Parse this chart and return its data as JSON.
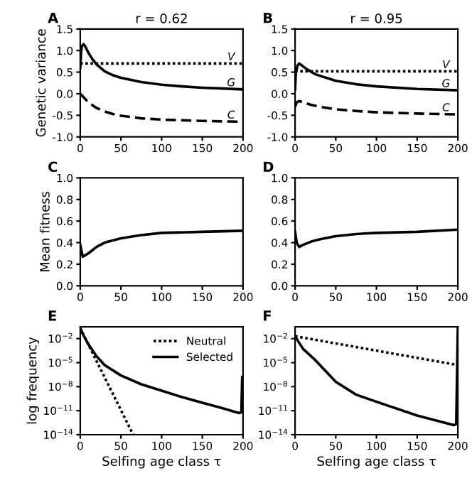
{
  "chart_data": [
    {
      "type": "line",
      "title": "r = 0.62",
      "ylabel": "Genetic variance",
      "annotations": [
        "A"
      ],
      "xlim": [
        0,
        200
      ],
      "xticks": [
        0,
        50,
        100,
        150,
        200
      ],
      "ylim": [
        -1.0,
        1.5
      ],
      "yticks": [
        {
          "value": -1.0,
          "label": "-1.0"
        },
        {
          "value": -0.5,
          "label": "-0.5"
        },
        {
          "value": 0.0,
          "label": "0.0"
        },
        {
          "value": 0.5,
          "label": "0.5"
        },
        {
          "value": 1.0,
          "label": "1.0"
        },
        {
          "value": 1.5,
          "label": "1.5"
        }
      ],
      "series": [
        {
          "name": "V",
          "color": "#000000",
          "line_style": "dotted",
          "x": [
            0,
            200
          ],
          "values": [
            0.7,
            0.7
          ]
        },
        {
          "name": "G",
          "color": "#000000",
          "line_style": "solid",
          "x": [
            0,
            1,
            2,
            4,
            6,
            10,
            15,
            20,
            30,
            40,
            50,
            75,
            100,
            125,
            150,
            175,
            200
          ],
          "values": [
            0.6,
            0.95,
            1.1,
            1.15,
            1.1,
            0.95,
            0.8,
            0.68,
            0.52,
            0.43,
            0.37,
            0.27,
            0.21,
            0.17,
            0.14,
            0.12,
            0.1
          ]
        },
        {
          "name": "C",
          "color": "#000000",
          "line_style": "dashed",
          "x": [
            0,
            5,
            10,
            20,
            30,
            40,
            50,
            75,
            100,
            150,
            200
          ],
          "values": [
            0,
            -0.1,
            -0.2,
            -0.33,
            -0.41,
            -0.47,
            -0.51,
            -0.57,
            -0.6,
            -0.63,
            -0.65
          ]
        }
      ]
    },
    {
      "type": "line",
      "title": "r = 0.95",
      "annotations": [
        "B"
      ],
      "xlim": [
        0,
        200
      ],
      "xticks": [
        0,
        50,
        100,
        150,
        200
      ],
      "ylim": [
        -1.0,
        1.5
      ],
      "yticks": [
        {
          "value": -1.0,
          "label": "-1.0"
        },
        {
          "value": -0.5,
          "label": "-0.5"
        },
        {
          "value": 0.0,
          "label": "0.0"
        },
        {
          "value": 0.5,
          "label": "0.5"
        },
        {
          "value": 1.0,
          "label": "1.0"
        },
        {
          "value": 1.5,
          "label": "1.5"
        }
      ],
      "series": [
        {
          "name": "V",
          "color": "#000000",
          "line_style": "dotted",
          "x": [
            0,
            200
          ],
          "values": [
            0.52,
            0.52
          ]
        },
        {
          "name": "G",
          "color": "#000000",
          "line_style": "solid",
          "x": [
            0,
            1,
            3,
            5,
            8,
            15,
            25,
            50,
            75,
            100,
            150,
            200
          ],
          "values": [
            0.1,
            0.5,
            0.65,
            0.7,
            0.66,
            0.56,
            0.45,
            0.3,
            0.22,
            0.17,
            0.11,
            0.08
          ]
        },
        {
          "name": "C",
          "color": "#000000",
          "line_style": "dashed",
          "x": [
            0,
            2,
            5,
            10,
            20,
            30,
            50,
            75,
            100,
            150,
            200
          ],
          "values": [
            -0.3,
            -0.2,
            -0.17,
            -0.2,
            -0.26,
            -0.3,
            -0.36,
            -0.4,
            -0.43,
            -0.46,
            -0.48
          ]
        }
      ]
    },
    {
      "type": "line",
      "ylabel": "Mean fitness",
      "annotations": [
        "C"
      ],
      "xlim": [
        0,
        200
      ],
      "xticks": [
        0,
        50,
        100,
        150,
        200
      ],
      "ylim": [
        0.0,
        1.0
      ],
      "yticks": [
        {
          "value": 0.0,
          "label": "0.0"
        },
        {
          "value": 0.2,
          "label": "0.2"
        },
        {
          "value": 0.4,
          "label": "0.4"
        },
        {
          "value": 0.6,
          "label": "0.6"
        },
        {
          "value": 0.8,
          "label": "0.8"
        },
        {
          "value": 1.0,
          "label": "1.0"
        }
      ],
      "series": [
        {
          "color": "#000000",
          "line_style": "solid",
          "x": [
            0,
            3,
            10,
            20,
            30,
            50,
            75,
            100,
            150,
            200
          ],
          "values": [
            0.38,
            0.27,
            0.3,
            0.36,
            0.4,
            0.44,
            0.47,
            0.49,
            0.5,
            0.51
          ]
        }
      ]
    },
    {
      "type": "line",
      "annotations": [
        "D"
      ],
      "xlim": [
        0,
        200
      ],
      "xticks": [
        0,
        50,
        100,
        150,
        200
      ],
      "ylim": [
        0.0,
        1.0
      ],
      "yticks": [
        {
          "value": 0.0,
          "label": "0.0"
        },
        {
          "value": 0.2,
          "label": "0.2"
        },
        {
          "value": 0.4,
          "label": "0.4"
        },
        {
          "value": 0.6,
          "label": "0.6"
        },
        {
          "value": 0.8,
          "label": "0.8"
        },
        {
          "value": 1.0,
          "label": "1.0"
        }
      ],
      "series": [
        {
          "color": "#000000",
          "line_style": "solid",
          "x": [
            0,
            2,
            5,
            10,
            20,
            30,
            50,
            75,
            100,
            150,
            200
          ],
          "values": [
            0.5,
            0.4,
            0.36,
            0.38,
            0.41,
            0.43,
            0.46,
            0.48,
            0.49,
            0.5,
            0.52
          ]
        }
      ]
    },
    {
      "type": "line",
      "log": "y",
      "xlabel": "Selfing age class τ",
      "ylabel": "log frequency",
      "annotations": [
        "E"
      ],
      "legend": "top right",
      "xlim": [
        0,
        200
      ],
      "xticks": [
        0,
        50,
        100,
        150,
        200
      ],
      "ylim": [
        1e-14,
        0.3
      ],
      "yticks": [
        {
          "value": 1e-14,
          "label": "10$^{−14}$"
        },
        {
          "value": 1e-11,
          "label": "10$^{−11}$"
        },
        {
          "value": 1e-08,
          "label": "10$^{−8}$"
        },
        {
          "value": 1e-05,
          "label": "10$^{−5}$"
        },
        {
          "value": 0.01,
          "label": "10$^{−2}$"
        }
      ],
      "series": [
        {
          "name": "Neutral",
          "color": "#000000",
          "line_style": "dotted",
          "x": [
            0,
            65
          ],
          "values": [
            0.2,
            1e-14
          ]
        },
        {
          "name": "Selected",
          "color": "#000000",
          "line_style": "solid",
          "x": [
            0,
            5,
            10,
            20,
            30,
            50,
            75,
            100,
            125,
            150,
            175,
            195,
            198,
            199
          ],
          "values": [
            0.2,
            0.016,
            0.002,
            6.3e-05,
            5e-06,
            2.5e-07,
            2e-08,
            3.2e-09,
            5e-10,
            1e-10,
            2e-11,
            5e-12,
            6.3e-12,
            1.6e-07
          ]
        }
      ]
    },
    {
      "type": "line",
      "log": "y",
      "xlabel": "Selfing age class τ",
      "annotations": [
        "F"
      ],
      "xlim": [
        0,
        200
      ],
      "xticks": [
        0,
        50,
        100,
        150,
        200
      ],
      "ylim": [
        1e-14,
        0.3
      ],
      "yticks": [
        {
          "value": 1e-14,
          "label": "10$^{−14}$"
        },
        {
          "value": 1e-11,
          "label": "10$^{−11}$"
        },
        {
          "value": 1e-08,
          "label": "10$^{−8}$"
        },
        {
          "value": 1e-05,
          "label": "10$^{−5}$"
        },
        {
          "value": 0.01,
          "label": "10$^{−2}$"
        }
      ],
      "series": [
        {
          "color": "#000000",
          "line_style": "dotted",
          "x": [
            0,
            200
          ],
          "values": [
            0.02,
            5e-06
          ]
        },
        {
          "color": "#000000",
          "line_style": "solid",
          "x": [
            0,
            5,
            10,
            25,
            50,
            75,
            100,
            150,
            195,
            198,
            200
          ],
          "values": [
            0.02,
            0.003,
            0.0005,
            2e-05,
            4e-08,
            1e-09,
            1.3e-10,
            2.5e-12,
            1.6e-13,
            2e-13,
            0.3
          ]
        }
      ]
    }
  ]
}
